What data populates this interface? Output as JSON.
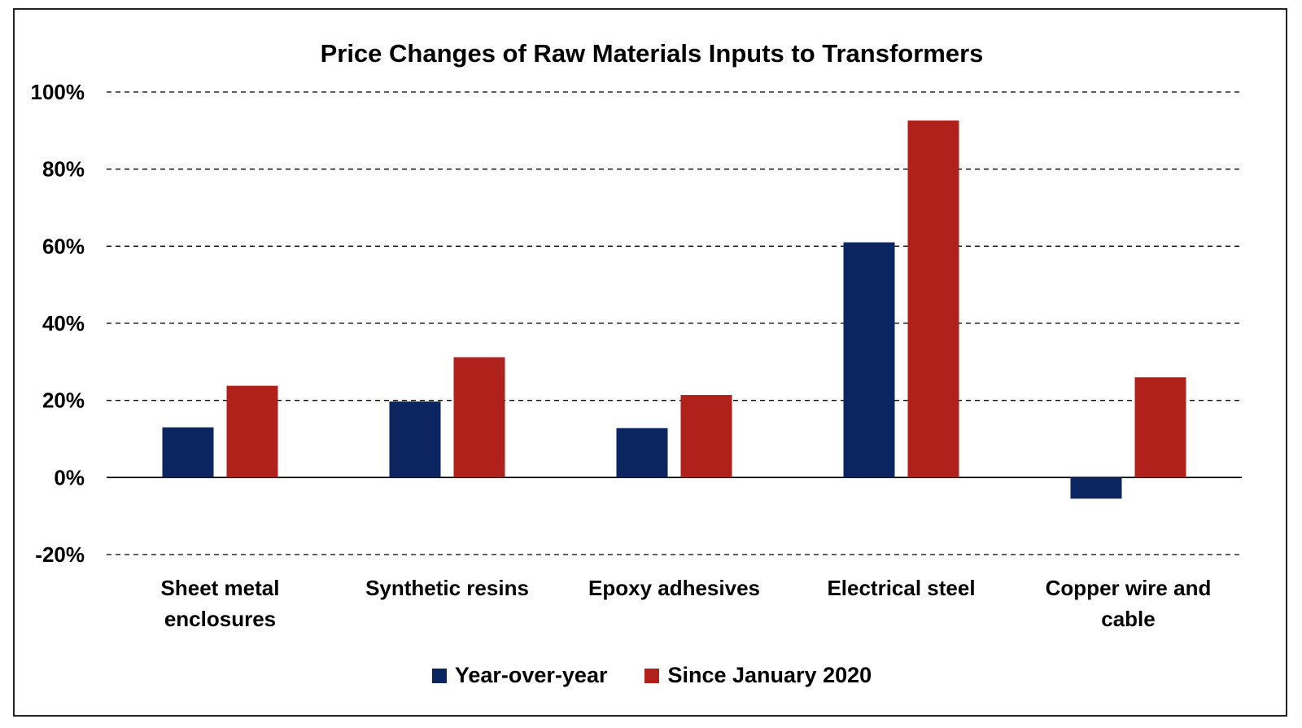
{
  "chart_data": {
    "type": "bar",
    "title": "Price Changes of Raw Materials Inputs to Transformers",
    "categories": [
      [
        "Sheet metal",
        "enclosures"
      ],
      [
        "Synthetic resins"
      ],
      [
        "Epoxy adhesives"
      ],
      [
        "Electrical steel"
      ],
      [
        "Copper wire and",
        "cable"
      ]
    ],
    "series": [
      {
        "name": "Year-over-year",
        "color": "#0b2560",
        "values": [
          13,
          19.7,
          12.8,
          61,
          -5.5
        ]
      },
      {
        "name": "Since January 2020",
        "color": "#b0211c",
        "values": [
          23.8,
          31.2,
          21.4,
          92.6,
          26
        ]
      }
    ],
    "ylim": [
      -20,
      100
    ],
    "yticks": [
      100,
      80,
      60,
      40,
      20,
      0,
      -20
    ],
    "ytick_labels": [
      "100%",
      "80%",
      "60%",
      "40%",
      "20%",
      "0%",
      "-20%"
    ],
    "xlabel": "",
    "ylabel": "",
    "grid": "dashed horizontal",
    "legend_position": "bottom"
  }
}
